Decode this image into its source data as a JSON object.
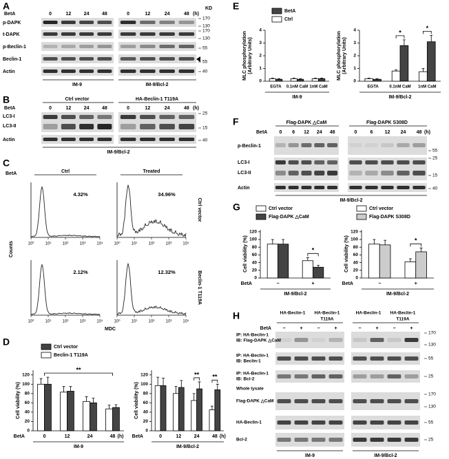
{
  "panels": {
    "A": {
      "letter": "A",
      "treatment": "BetA",
      "lanes": [
        "0",
        "12",
        "24",
        "48",
        "0",
        "12",
        "24",
        "48"
      ],
      "time_unit": "(h)",
      "kd": "KD",
      "rows": [
        "p-DAPK",
        "t-DAPK",
        "p-Beclin-1",
        "Beclin-1",
        "Actin"
      ],
      "markers": [
        170,
        130,
        170,
        130,
        55,
        55,
        40
      ],
      "groups": [
        "IM-9",
        "IM-9/Bcl-2"
      ]
    },
    "B": {
      "letter": "B",
      "treatment": "BetA",
      "constructs": [
        "Ctrl vector",
        "HA-Beclin-1 T119A"
      ],
      "lanes": [
        "0",
        "12",
        "24",
        "48",
        "0",
        "12",
        "24",
        "48"
      ],
      "time_unit": "(h)",
      "rows": [
        "LC3-I",
        "LC3-II",
        "Actin"
      ],
      "markers": [
        25,
        15,
        40
      ],
      "group": "IM-9/Bcl-2"
    },
    "C": {
      "letter": "C",
      "treatment": "BetA",
      "conditions": [
        "Ctrl",
        "Treated"
      ],
      "constructs": [
        "Ctrl vector",
        "Beclin-1 T119A"
      ],
      "percentages": [
        [
          "4.32%",
          "34.96%"
        ],
        [
          "2.12%",
          "12.32%"
        ]
      ],
      "xticks": [
        "10⁰",
        "10¹",
        "10²",
        "10³",
        "10⁴"
      ],
      "y_label": "Counts",
      "x_label": "MDC"
    },
    "D": {
      "letter": "D"
    },
    "E": {
      "letter": "E"
    },
    "F": {
      "letter": "F",
      "treatment": "BetA",
      "constructs": [
        "Flag-DAPK △CaM",
        "Flag-DAPK S308D"
      ],
      "lanes": [
        "0",
        "6",
        "12",
        "24",
        "48",
        "0",
        "6",
        "12",
        "24",
        "48"
      ],
      "time_unit": "(h)",
      "rows": [
        "p-Beclin-1",
        "LC3-I",
        "LC3-II",
        "Actin"
      ],
      "markers": [
        55,
        25,
        15,
        40
      ],
      "group": "IM-9/Bcl-2"
    },
    "G": {
      "letter": "G"
    },
    "H": {
      "letter": "H",
      "treatment": "BetA",
      "constructs": [
        {
          "name": "HA-Beclin-1"
        },
        {
          "name": "HA-Beclin-1",
          "mutant": "T119A"
        },
        {
          "name": "HA-Beclin-1"
        },
        {
          "name": "HA-Beclin-1",
          "mutant": "T119A"
        }
      ],
      "lanes": [
        "−",
        "+",
        "−",
        "+",
        "−",
        "+",
        "−",
        "+"
      ],
      "ip_rows": [
        {
          "ip": "IP: HA-Beclin-1",
          "ib": "IB: Flag-DAPK △CaM"
        },
        {
          "ip": "IP: HA-Beclin-1",
          "ib": "IB: Beclin-1"
        },
        {
          "ip": "IP: HA-Beclin-1",
          "ib": "IB: Bcl-2"
        }
      ],
      "lysate": "Whole lysate",
      "lysate_rows": [
        "Flag-DAPK △CaM",
        "HA-Beclin-1",
        "Bcl-2"
      ],
      "markers": [
        170,
        130,
        55,
        25,
        170,
        130,
        55,
        25
      ],
      "groups": [
        "IM-9",
        "IM-9/Bcl-2"
      ]
    }
  },
  "chart_data": [
    {
      "type": "bar",
      "y_label": [
        "Cell viability (%)"
      ],
      "x_label": "IM-9",
      "category_label": "BetA",
      "categories": [
        "0",
        "12",
        "24",
        "48"
      ],
      "x_unit": "(h)",
      "series": [
        {
          "name": "Beclin-1 T119A",
          "color": "#ffffff",
          "values": [
            100,
            83,
            63,
            47
          ],
          "errors": [
            12,
            12,
            10,
            8
          ]
        },
        {
          "name": "Ctrl vector",
          "color": "#444444",
          "values": [
            100,
            85,
            60,
            50
          ],
          "errors": [
            15,
            10,
            10,
            6
          ]
        }
      ],
      "ylim": [
        0,
        130
      ],
      "yticks": [
        0,
        20,
        40,
        60,
        80,
        100,
        120
      ],
      "annotations": [
        "**"
      ]
    },
    {
      "type": "bar",
      "y_label": [
        "Cell viability (%)"
      ],
      "x_label": "IM-9/Bcl-2",
      "category_label": "BetA",
      "categories": [
        "0",
        "12",
        "24",
        "48"
      ],
      "x_unit": "(h)",
      "series": [
        {
          "color": "#ffffff",
          "values": [
            97,
            80,
            65,
            45
          ],
          "errors": [
            18,
            15,
            15,
            8
          ]
        },
        {
          "color": "#444444",
          "values": [
            97,
            93,
            90,
            88
          ],
          "errors": [
            16,
            15,
            15,
            12
          ]
        }
      ],
      "ylim": [
        0,
        130
      ],
      "yticks": [
        0,
        20,
        40,
        60,
        80,
        100,
        120
      ],
      "annotations": [
        "**",
        "**"
      ]
    },
    {
      "type": "bar",
      "y_label": [
        "MLC phosphorylation",
        "(Arbitrary Units)"
      ],
      "x_label": "IM-9",
      "categories": [
        "EGTA",
        "0.1nM CaM",
        "1nM CaM"
      ],
      "series": [
        {
          "name": "Ctrl",
          "color": "#ffffff",
          "values": [
            0.2,
            0.2,
            0.2
          ],
          "errors": [
            0.05,
            0.05,
            0.05
          ]
        },
        {
          "name": "BetA",
          "color": "#444444",
          "values": [
            0.15,
            0.15,
            0.2
          ],
          "errors": [
            0.05,
            0.05,
            0.05
          ]
        }
      ],
      "ylim": [
        0,
        4
      ],
      "yticks": [
        0,
        1,
        2,
        3,
        4
      ]
    },
    {
      "type": "bar",
      "y_label": [
        "MLC phosphorylation",
        "(Arbitrary Units)"
      ],
      "x_label": "IM-9/Bcl-2",
      "categories": [
        "EGTA",
        "0.1nM CaM",
        "1nM CaM"
      ],
      "series": [
        {
          "color": "#ffffff",
          "values": [
            0.2,
            0.8,
            0.75
          ],
          "errors": [
            0.05,
            0.1,
            0.25
          ]
        },
        {
          "color": "#444444",
          "values": [
            0.15,
            2.8,
            3.1
          ],
          "errors": [
            0.05,
            0.45,
            0.5
          ]
        }
      ],
      "ylim": [
        0,
        4
      ],
      "yticks": [
        0,
        1,
        2,
        3,
        4
      ],
      "annotations": [
        "*",
        "*"
      ]
    },
    {
      "type": "bar",
      "y_label": [
        "Cell viability (%)"
      ],
      "x_label": "IM-9/Bcl-2",
      "category_label": "BetA",
      "categories": [
        "−",
        "+"
      ],
      "series": [
        {
          "name": "Ctrl vector",
          "color": "#ffffff",
          "values": [
            88,
            45
          ],
          "errors": [
            12,
            8
          ]
        },
        {
          "name": "Flag-DAPK △CaM",
          "color": "#444444",
          "values": [
            88,
            28
          ],
          "errors": [
            12,
            5
          ]
        }
      ],
      "ylim": [
        0,
        125
      ],
      "yticks": [
        0,
        20,
        40,
        60,
        80,
        100,
        120
      ],
      "annotations": [
        "*"
      ]
    },
    {
      "type": "bar",
      "y_label": [
        "Cell viability (%)"
      ],
      "x_label": "IM-9/Bcl-2",
      "category_label": "BetA",
      "categories": [
        "−",
        "+"
      ],
      "series": [
        {
          "name": "Ctrl vector",
          "color": "#ffffff",
          "values": [
            88,
            42
          ],
          "errors": [
            12,
            8
          ]
        },
        {
          "name": "Flag-DAPK S308D",
          "color": "#cccccc",
          "values": [
            86,
            68
          ],
          "errors": [
            12,
            10
          ]
        }
      ],
      "ylim": [
        0,
        125
      ],
      "yticks": [
        0,
        20,
        40,
        60,
        80,
        100,
        120
      ],
      "annotations": [
        "*"
      ]
    }
  ]
}
